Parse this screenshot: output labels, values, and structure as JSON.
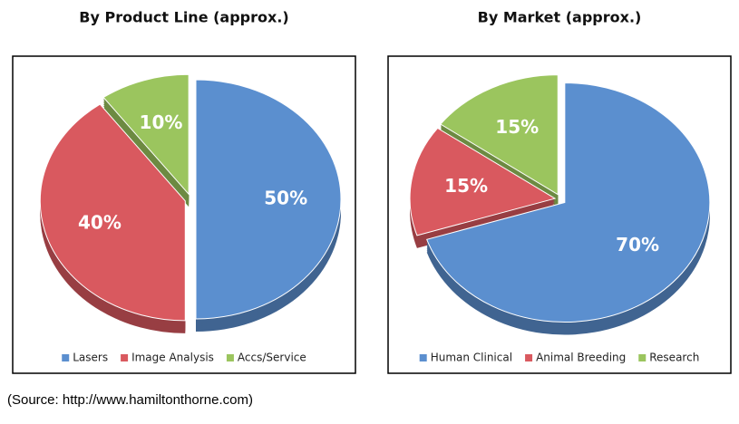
{
  "source": "(Source: http://www.hamiltonthorne.com)",
  "chart_data": [
    {
      "type": "pie",
      "title": "By Product Line (approx.)",
      "categories": [
        "Lasers",
        "Image Analysis",
        "Accs/Service"
      ],
      "values": [
        50,
        40,
        10
      ],
      "value_labels": [
        "50%",
        "40%",
        "10%"
      ],
      "colors": [
        "#5b8fcf",
        "#d9595f",
        "#9bc55e"
      ],
      "legend": "bottom"
    },
    {
      "type": "pie",
      "title": "By Market (approx.)",
      "categories": [
        "Human Clinical",
        "Animal Breeding",
        "Research"
      ],
      "values": [
        70,
        15,
        15
      ],
      "value_labels": [
        "70%",
        "15%",
        "15%"
      ],
      "colors": [
        "#5b8fcf",
        "#d9595f",
        "#9bc55e"
      ],
      "legend": "bottom"
    }
  ]
}
